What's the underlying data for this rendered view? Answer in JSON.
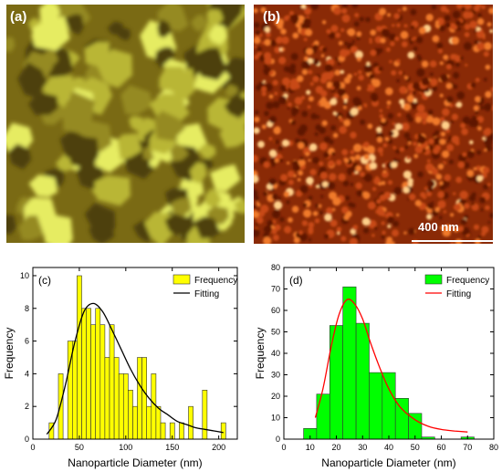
{
  "panels": {
    "a": {
      "label": "(a)"
    },
    "b": {
      "label": "(b)",
      "scale_bar": "400 nm"
    }
  },
  "chart_data": [
    {
      "type": "bar",
      "panel_label": "(c)",
      "xlabel": "Nanoparticle Diameter (nm)",
      "ylabel": "Frequency",
      "xlim": [
        0,
        220
      ],
      "ylim": [
        0,
        10.5
      ],
      "xticks": [
        0,
        50,
        100,
        150,
        200
      ],
      "yticks": [
        0,
        2,
        4,
        6,
        8,
        10
      ],
      "bin_width": 5,
      "bar_color": "#ffff00",
      "fit_color": "#000000",
      "bars": [
        {
          "x": 20,
          "y": 1
        },
        {
          "x": 30,
          "y": 4
        },
        {
          "x": 40,
          "y": 6
        },
        {
          "x": 45,
          "y": 6
        },
        {
          "x": 50,
          "y": 10
        },
        {
          "x": 55,
          "y": 8
        },
        {
          "x": 60,
          "y": 8
        },
        {
          "x": 65,
          "y": 7
        },
        {
          "x": 70,
          "y": 8
        },
        {
          "x": 75,
          "y": 7
        },
        {
          "x": 80,
          "y": 5
        },
        {
          "x": 85,
          "y": 7
        },
        {
          "x": 90,
          "y": 5
        },
        {
          "x": 95,
          "y": 4
        },
        {
          "x": 100,
          "y": 4
        },
        {
          "x": 105,
          "y": 3
        },
        {
          "x": 110,
          "y": 2
        },
        {
          "x": 115,
          "y": 5
        },
        {
          "x": 120,
          "y": 5
        },
        {
          "x": 125,
          "y": 2
        },
        {
          "x": 130,
          "y": 4
        },
        {
          "x": 135,
          "y": 2
        },
        {
          "x": 140,
          "y": 1
        },
        {
          "x": 150,
          "y": 1
        },
        {
          "x": 160,
          "y": 1
        },
        {
          "x": 170,
          "y": 2
        },
        {
          "x": 185,
          "y": 3
        },
        {
          "x": 205,
          "y": 1
        }
      ],
      "fit": {
        "x": [
          15,
          25,
          35,
          45,
          55,
          65,
          75,
          85,
          95,
          105,
          115,
          125,
          135,
          145,
          155,
          165,
          175,
          185,
          195,
          205
        ],
        "y": [
          0.3,
          1.2,
          3.3,
          5.9,
          7.8,
          8.3,
          7.8,
          6.7,
          5.5,
          4.3,
          3.3,
          2.5,
          1.9,
          1.5,
          1.1,
          0.9,
          0.7,
          0.6,
          0.5,
          0.4
        ]
      },
      "legend": {
        "position": "top-right",
        "entries": [
          "Frequency",
          "Fitting"
        ]
      }
    },
    {
      "type": "bar",
      "panel_label": "(d)",
      "xlabel": "Nanoparticle Diameter (nm)",
      "ylabel": "Frequency",
      "xlim": [
        0,
        80
      ],
      "ylim": [
        0,
        80
      ],
      "xticks": [
        0,
        10,
        20,
        30,
        40,
        50,
        60,
        70,
        80
      ],
      "yticks": [
        0,
        10,
        20,
        30,
        40,
        50,
        60,
        70,
        80
      ],
      "bin_width": 5,
      "bar_color": "#00ff00",
      "fit_color": "#ff0000",
      "bars": [
        {
          "x": 10,
          "y": 5
        },
        {
          "x": 15,
          "y": 21
        },
        {
          "x": 20,
          "y": 53
        },
        {
          "x": 25,
          "y": 71
        },
        {
          "x": 30,
          "y": 54
        },
        {
          "x": 35,
          "y": 31
        },
        {
          "x": 40,
          "y": 31
        },
        {
          "x": 45,
          "y": 19
        },
        {
          "x": 50,
          "y": 12
        },
        {
          "x": 55,
          "y": 1
        },
        {
          "x": 70,
          "y": 1
        }
      ],
      "fit": {
        "x": [
          12,
          15,
          18,
          21,
          24,
          27,
          30,
          33,
          36,
          39,
          42,
          45,
          50,
          55,
          60,
          65,
          70
        ],
        "y": [
          10,
          24,
          43,
          58,
          65,
          63,
          56,
          45,
          35,
          26,
          19,
          14,
          9,
          6,
          4.5,
          3.8,
          3.3
        ]
      },
      "legend": {
        "position": "top-right",
        "entries": [
          "Frequency",
          "Fitting"
        ]
      }
    }
  ]
}
